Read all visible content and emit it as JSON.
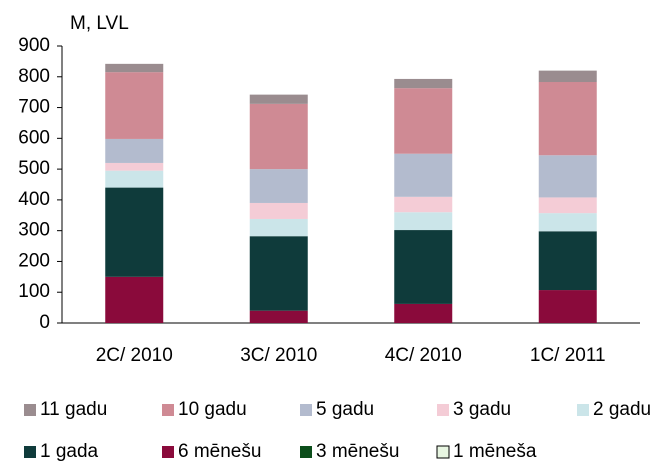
{
  "chart_data": {
    "type": "stacked_bar",
    "y_axis_label": "M, LVL",
    "categories": [
      "2C/ 2010",
      "3C/ 2010",
      "4C/ 2010",
      "1C/ 2011"
    ],
    "series": [
      {
        "name": "11 gadu",
        "color": "#9a8c8f",
        "values": [
          27,
          30,
          30,
          37
        ]
      },
      {
        "name": "10 gadu",
        "color": "#cf8a94",
        "values": [
          217,
          212,
          213,
          238
        ]
      },
      {
        "name": "5 gadu",
        "color": "#b3bbce",
        "values": [
          78,
          110,
          140,
          137
        ]
      },
      {
        "name": "3 gadu",
        "color": "#f4ccd6",
        "values": [
          25,
          52,
          50,
          51
        ]
      },
      {
        "name": "2 gadu",
        "color": "#cbe5e9",
        "values": [
          55,
          56,
          58,
          59
        ]
      },
      {
        "name": "1 gada",
        "color": "#0f3b3b",
        "values": [
          290,
          242,
          240,
          191
        ]
      },
      {
        "name": "6 mēnešu",
        "color": "#8a0a3b",
        "values": [
          150,
          40,
          62,
          107
        ]
      },
      {
        "name": "3 mēnešu",
        "color": "#0c4e1b",
        "values": [
          0,
          0,
          0,
          0
        ]
      },
      {
        "name": "1 mēneša",
        "color": "#e8f6e2",
        "values": [
          0,
          0,
          0,
          0
        ]
      }
    ],
    "ylim": [
      0,
      900
    ],
    "yticks": [
      0,
      100,
      200,
      300,
      400,
      500,
      600,
      700,
      800,
      900
    ],
    "grid": false
  }
}
